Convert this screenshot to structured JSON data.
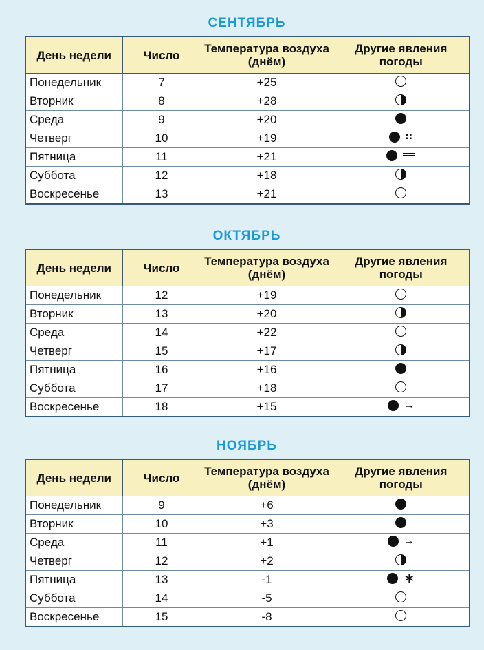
{
  "headers": {
    "day": "День недели",
    "number": "Число",
    "temp": "Температура воздуха (днём)",
    "other": "Другие явления погоды"
  },
  "months": [
    {
      "title": "СЕНТЯБРЬ",
      "rows": [
        {
          "day": "Понедельник",
          "number": "7",
          "temp": "+25",
          "cloud": "clear-icon",
          "extra": ""
        },
        {
          "day": "Вторник",
          "number": "8",
          "temp": "+28",
          "cloud": "partly-cloudy-icon",
          "extra": ""
        },
        {
          "day": "Среда",
          "number": "9",
          "temp": "+20",
          "cloud": "overcast-icon",
          "extra": ""
        },
        {
          "day": "Четверг",
          "number": "10",
          "temp": "+19",
          "cloud": "overcast-icon",
          "extra": "rain-icon"
        },
        {
          "day": "Пятница",
          "number": "11",
          "temp": "+21",
          "cloud": "overcast-icon",
          "extra": "fog-icon"
        },
        {
          "day": "Суббота",
          "number": "12",
          "temp": "+18",
          "cloud": "partly-cloudy-icon",
          "extra": ""
        },
        {
          "day": "Воскресенье",
          "number": "13",
          "temp": "+21",
          "cloud": "clear-icon",
          "extra": ""
        }
      ]
    },
    {
      "title": "ОКТЯБРЬ",
      "rows": [
        {
          "day": "Понедельник",
          "number": "12",
          "temp": "+19",
          "cloud": "clear-icon",
          "extra": ""
        },
        {
          "day": "Вторник",
          "number": "13",
          "temp": "+20",
          "cloud": "partly-cloudy-icon",
          "extra": ""
        },
        {
          "day": "Среда",
          "number": "14",
          "temp": "+22",
          "cloud": "clear-icon",
          "extra": ""
        },
        {
          "day": "Четверг",
          "number": "15",
          "temp": "+17",
          "cloud": "partly-cloudy-icon",
          "extra": ""
        },
        {
          "day": "Пятница",
          "number": "16",
          "temp": "+16",
          "cloud": "overcast-icon",
          "extra": ""
        },
        {
          "day": "Суббота",
          "number": "17",
          "temp": "+18",
          "cloud": "clear-icon",
          "extra": ""
        },
        {
          "day": "Воскресенье",
          "number": "18",
          "temp": "+15",
          "cloud": "overcast-icon",
          "extra": "wind-icon"
        }
      ]
    },
    {
      "title": "НОЯБРЬ",
      "rows": [
        {
          "day": "Понедельник",
          "number": "9",
          "temp": "+6",
          "cloud": "overcast-icon",
          "extra": ""
        },
        {
          "day": "Вторник",
          "number": "10",
          "temp": "+3",
          "cloud": "overcast-icon",
          "extra": ""
        },
        {
          "day": "Среда",
          "number": "11",
          "temp": "+1",
          "cloud": "overcast-icon",
          "extra": "wind-icon"
        },
        {
          "day": "Четверг",
          "number": "12",
          "temp": "+2",
          "cloud": "partly-cloudy-icon",
          "extra": ""
        },
        {
          "day": "Пятница",
          "number": "13",
          "temp": "-1",
          "cloud": "overcast-icon",
          "extra": "snow-icon"
        },
        {
          "day": "Суббота",
          "number": "14",
          "temp": "-5",
          "cloud": "clear-icon",
          "extra": ""
        },
        {
          "day": "Воскресенье",
          "number": "15",
          "temp": "-8",
          "cloud": "clear-icon",
          "extra": ""
        }
      ]
    }
  ]
}
